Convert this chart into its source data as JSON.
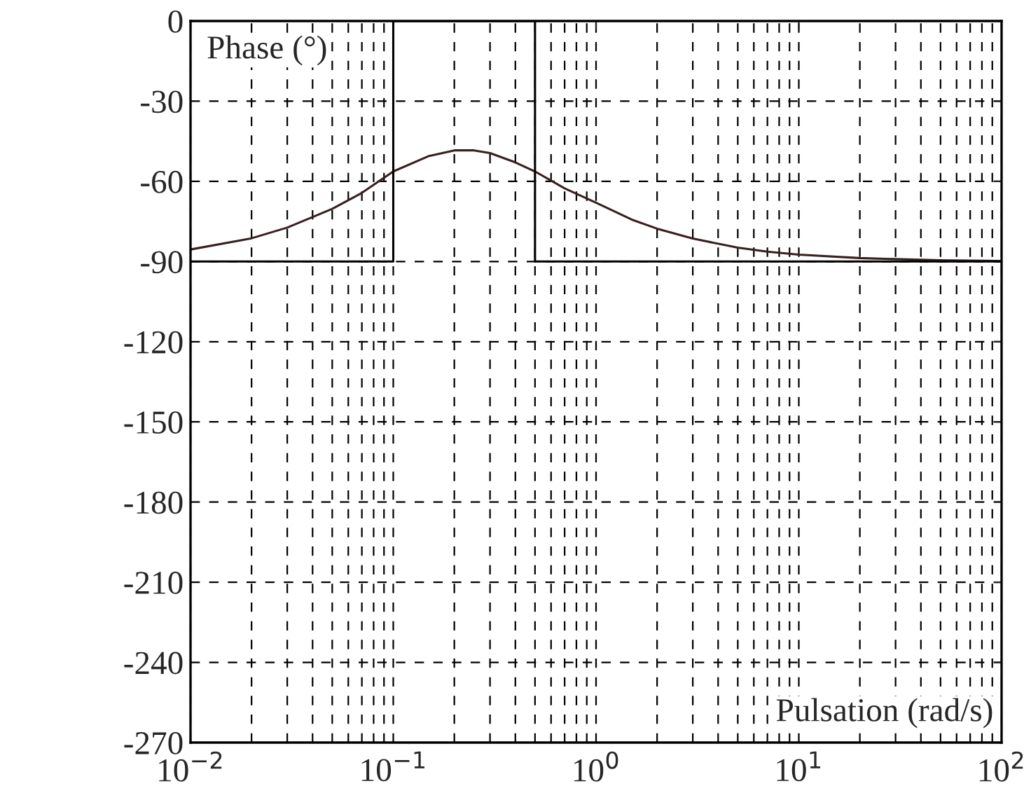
{
  "chart_data": {
    "type": "line",
    "xlabel": "Pulsation (rad/s)",
    "ylabel": "Phase (°)",
    "log": "x",
    "xlim": [
      0.01,
      100
    ],
    "xticks": [
      {
        "value": 0.01,
        "label": "10$^{−2}$"
      },
      {
        "value": 0.1,
        "label": "10$^{−1}$"
      },
      {
        "value": 1,
        "label": "10$^{0}$"
      },
      {
        "value": 10,
        "label": "10$^{1}$"
      },
      {
        "value": 100,
        "label": "10$^{2}$"
      }
    ],
    "ylim": [
      -270,
      0
    ],
    "yticks": [
      -270,
      -240,
      -210,
      -180,
      -150,
      -120,
      -90,
      -60,
      -30,
      0
    ],
    "grid": true,
    "line_style": "solid",
    "marker": "none",
    "series": [
      {
        "color": "#3a1f1f",
        "x": [
          0.01,
          0.02,
          0.03,
          0.05,
          0.07,
          0.1,
          0.15,
          0.2,
          0.25,
          0.3,
          0.4,
          0.5,
          0.7,
          1,
          1.5,
          2,
          3,
          5,
          7,
          10,
          20,
          30,
          50,
          100
        ],
        "values": [
          -85.5,
          -81.3,
          -77.3,
          -70.3,
          -64.3,
          -56.3,
          -50.5,
          -48.4,
          -48.4,
          -49.4,
          -52.9,
          -56.3,
          -62.6,
          -68.0,
          -74.3,
          -77.7,
          -81.4,
          -84.8,
          -86.3,
          -87.4,
          -88.7,
          -89.1,
          -89.5,
          -89.8
        ]
      },
      {
        "color": "#000000",
        "x": [
          0.01,
          0.1,
          0.1,
          0.5,
          0.5,
          100
        ],
        "values": [
          -90,
          -90,
          0,
          0,
          -90,
          -90
        ]
      }
    ]
  }
}
